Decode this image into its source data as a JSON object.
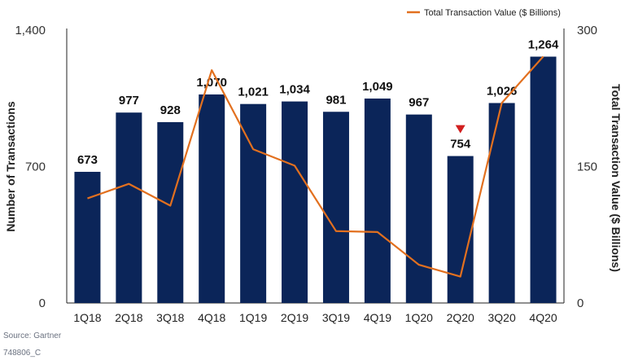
{
  "chart_data": {
    "type": "bar",
    "categories": [
      "1Q18",
      "2Q18",
      "3Q18",
      "4Q18",
      "1Q19",
      "2Q19",
      "3Q19",
      "4Q19",
      "1Q20",
      "2Q20",
      "3Q20",
      "4Q20"
    ],
    "series": [
      {
        "type": "bar",
        "axis": "left",
        "values": [
          673,
          977,
          928,
          1070,
          1021,
          1034,
          981,
          1049,
          967,
          754,
          1026,
          1264
        ],
        "labels": [
          "673",
          "977",
          "928",
          "1,070",
          "1,021",
          "1,034",
          "981",
          "1,049",
          "967",
          "754",
          "1,026",
          "1,264"
        ],
        "color": "#0b2559"
      },
      {
        "name": "Total Transaction Value ($ Billions)",
        "type": "line",
        "axis": "right",
        "values": [
          115,
          131,
          107,
          256,
          169,
          151,
          79,
          78,
          42,
          29,
          220,
          271
        ],
        "color": "#e2701f"
      }
    ],
    "ylabel": "Number of Transactions",
    "ylabel_right": "Total Transaction Value ($ Billions)",
    "ylim": [
      0,
      1400
    ],
    "ylim_right": [
      0,
      300
    ],
    "yticks": [
      "0",
      "700",
      "1,400"
    ],
    "yticks_right": [
      "0",
      "150",
      "300"
    ],
    "legend": {
      "position": "top-right",
      "label": "Total Transaction Value ($ Billions)"
    },
    "annotation": {
      "type": "down-triangle",
      "category": "2Q20",
      "color": "#d11f1f"
    },
    "grid": false
  },
  "footer": {
    "source": "Source: Gartner",
    "id": "748806_C"
  }
}
